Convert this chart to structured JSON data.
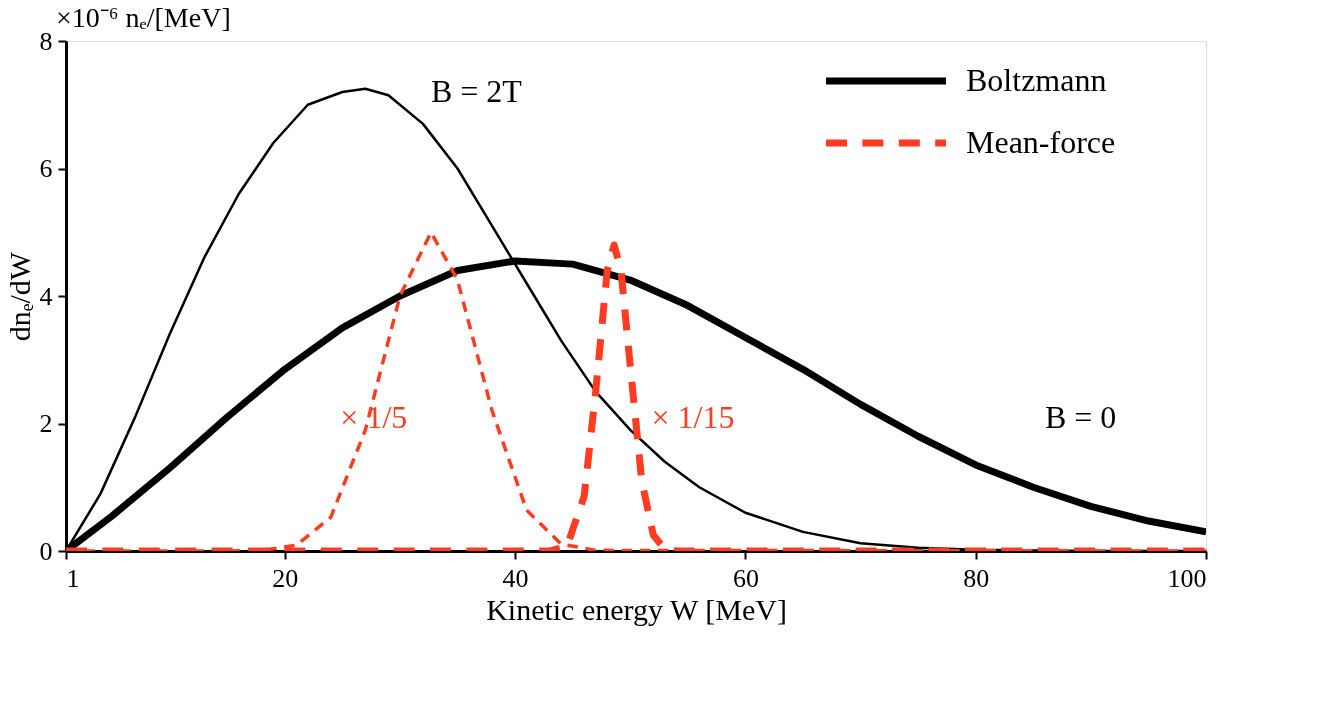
{
  "chart_data": {
    "type": "line",
    "xlabel": "Kinetic energy W [MeV]",
    "ylabel": "dnₑ/dW",
    "xlim": [
      1,
      100
    ],
    "xticks": [
      1,
      20,
      40,
      60,
      80,
      100
    ],
    "ylim": [
      0,
      8
    ],
    "yticks": [
      0,
      2,
      4,
      6,
      8
    ],
    "grid": false,
    "legend": "top right",
    "marker": "none",
    "annotations": [
      "×10⁻⁶ nₑ/[MeV]",
      "B = 2T",
      "B = 0",
      "× 1/5",
      "× 1/15"
    ],
    "series": [
      {
        "color": "#000000",
        "line_style": "solid",
        "x": [
          1,
          4,
          7,
          10,
          13,
          16,
          19,
          22,
          25,
          27,
          29,
          32,
          35,
          38,
          41,
          44,
          47,
          50,
          53,
          56,
          60,
          65,
          70,
          75,
          80,
          90,
          100
        ],
        "values": [
          0,
          0.9,
          2.1,
          3.4,
          4.6,
          5.6,
          6.4,
          7.0,
          7.2,
          7.25,
          7.15,
          6.7,
          6.0,
          5.1,
          4.2,
          3.3,
          2.5,
          1.9,
          1.4,
          1.0,
          0.6,
          0.3,
          0.12,
          0.05,
          0.02,
          0,
          0
        ]
      },
      {
        "name": "Boltzmann",
        "color": "#000000",
        "line_style": "solid",
        "x": [
          1,
          5,
          10,
          15,
          20,
          25,
          30,
          35,
          40,
          45,
          50,
          55,
          60,
          65,
          70,
          75,
          80,
          85,
          90,
          95,
          100
        ],
        "values": [
          0,
          0.55,
          1.3,
          2.1,
          2.85,
          3.5,
          4.0,
          4.4,
          4.55,
          4.5,
          4.25,
          3.85,
          3.35,
          2.85,
          2.3,
          1.8,
          1.35,
          1.0,
          0.7,
          0.47,
          0.3
        ]
      },
      {
        "color": "#ff3b21",
        "line_style": "dashed",
        "x": [
          1,
          15,
          18,
          21,
          24,
          27,
          30,
          32.7,
          35,
          38,
          41,
          44,
          47,
          100
        ],
        "values": [
          0,
          0,
          0.01,
          0.09,
          0.53,
          1.9,
          4.0,
          5.0,
          4.25,
          2.2,
          0.64,
          0.11,
          0.01,
          0
        ]
      },
      {
        "name": "Mean-force",
        "color": "#ff3b21",
        "line_style": "dashed",
        "x": [
          1,
          43,
          44.5,
          46,
          47,
          48,
          48.6,
          49.2,
          50,
          51,
          52,
          53,
          54,
          100
        ],
        "values": [
          0,
          0,
          0.07,
          0.86,
          2.5,
          4.4,
          4.8,
          4.4,
          2.9,
          1.1,
          0.25,
          0.03,
          0,
          0
        ]
      }
    ]
  }
}
